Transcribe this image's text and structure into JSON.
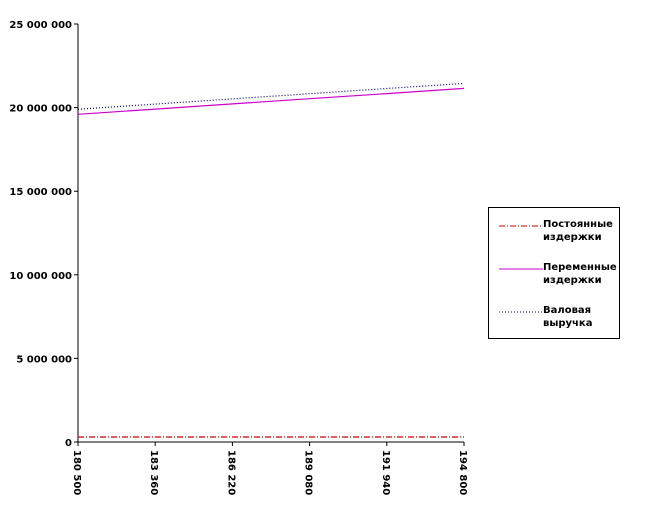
{
  "chart_data": {
    "type": "line",
    "x": [
      180500,
      183360,
      186220,
      189080,
      191940,
      194800
    ],
    "x_tick_labels": [
      "180 500",
      "183 360",
      "186 220",
      "189 080",
      "191 940",
      "194 800"
    ],
    "y_tick_labels": [
      "0",
      "5 000 000",
      "10 000 000",
      "15 000 000",
      "20 000 000",
      "25 000 000"
    ],
    "y_ticks": [
      0,
      5000000,
      10000000,
      15000000,
      20000000,
      25000000
    ],
    "ylim": [
      0,
      25000000
    ],
    "xlim": [
      180500,
      194800
    ],
    "grid": false,
    "legend_position": "right",
    "series": [
      {
        "name": "Постоянные издержки",
        "label_lines": [
          "Постоянные",
          "издержки"
        ],
        "values": [
          300000,
          300000,
          300000,
          300000,
          300000,
          300000
        ],
        "color": "#cc0000",
        "style": "dash-dot"
      },
      {
        "name": "Переменные издержки",
        "label_lines": [
          "Переменные",
          "издержки"
        ],
        "values": [
          19600000,
          19910000,
          20220000,
          20530000,
          20840000,
          21150000
        ],
        "color": "#cc00cc",
        "style": "solid"
      },
      {
        "name": "Валовая выручка",
        "label_lines": [
          "Валовая",
          "выручка"
        ],
        "values": [
          19900000,
          20210000,
          20520000,
          20830000,
          21140000,
          21450000
        ],
        "color": "#000080",
        "style": "dotted"
      }
    ]
  }
}
